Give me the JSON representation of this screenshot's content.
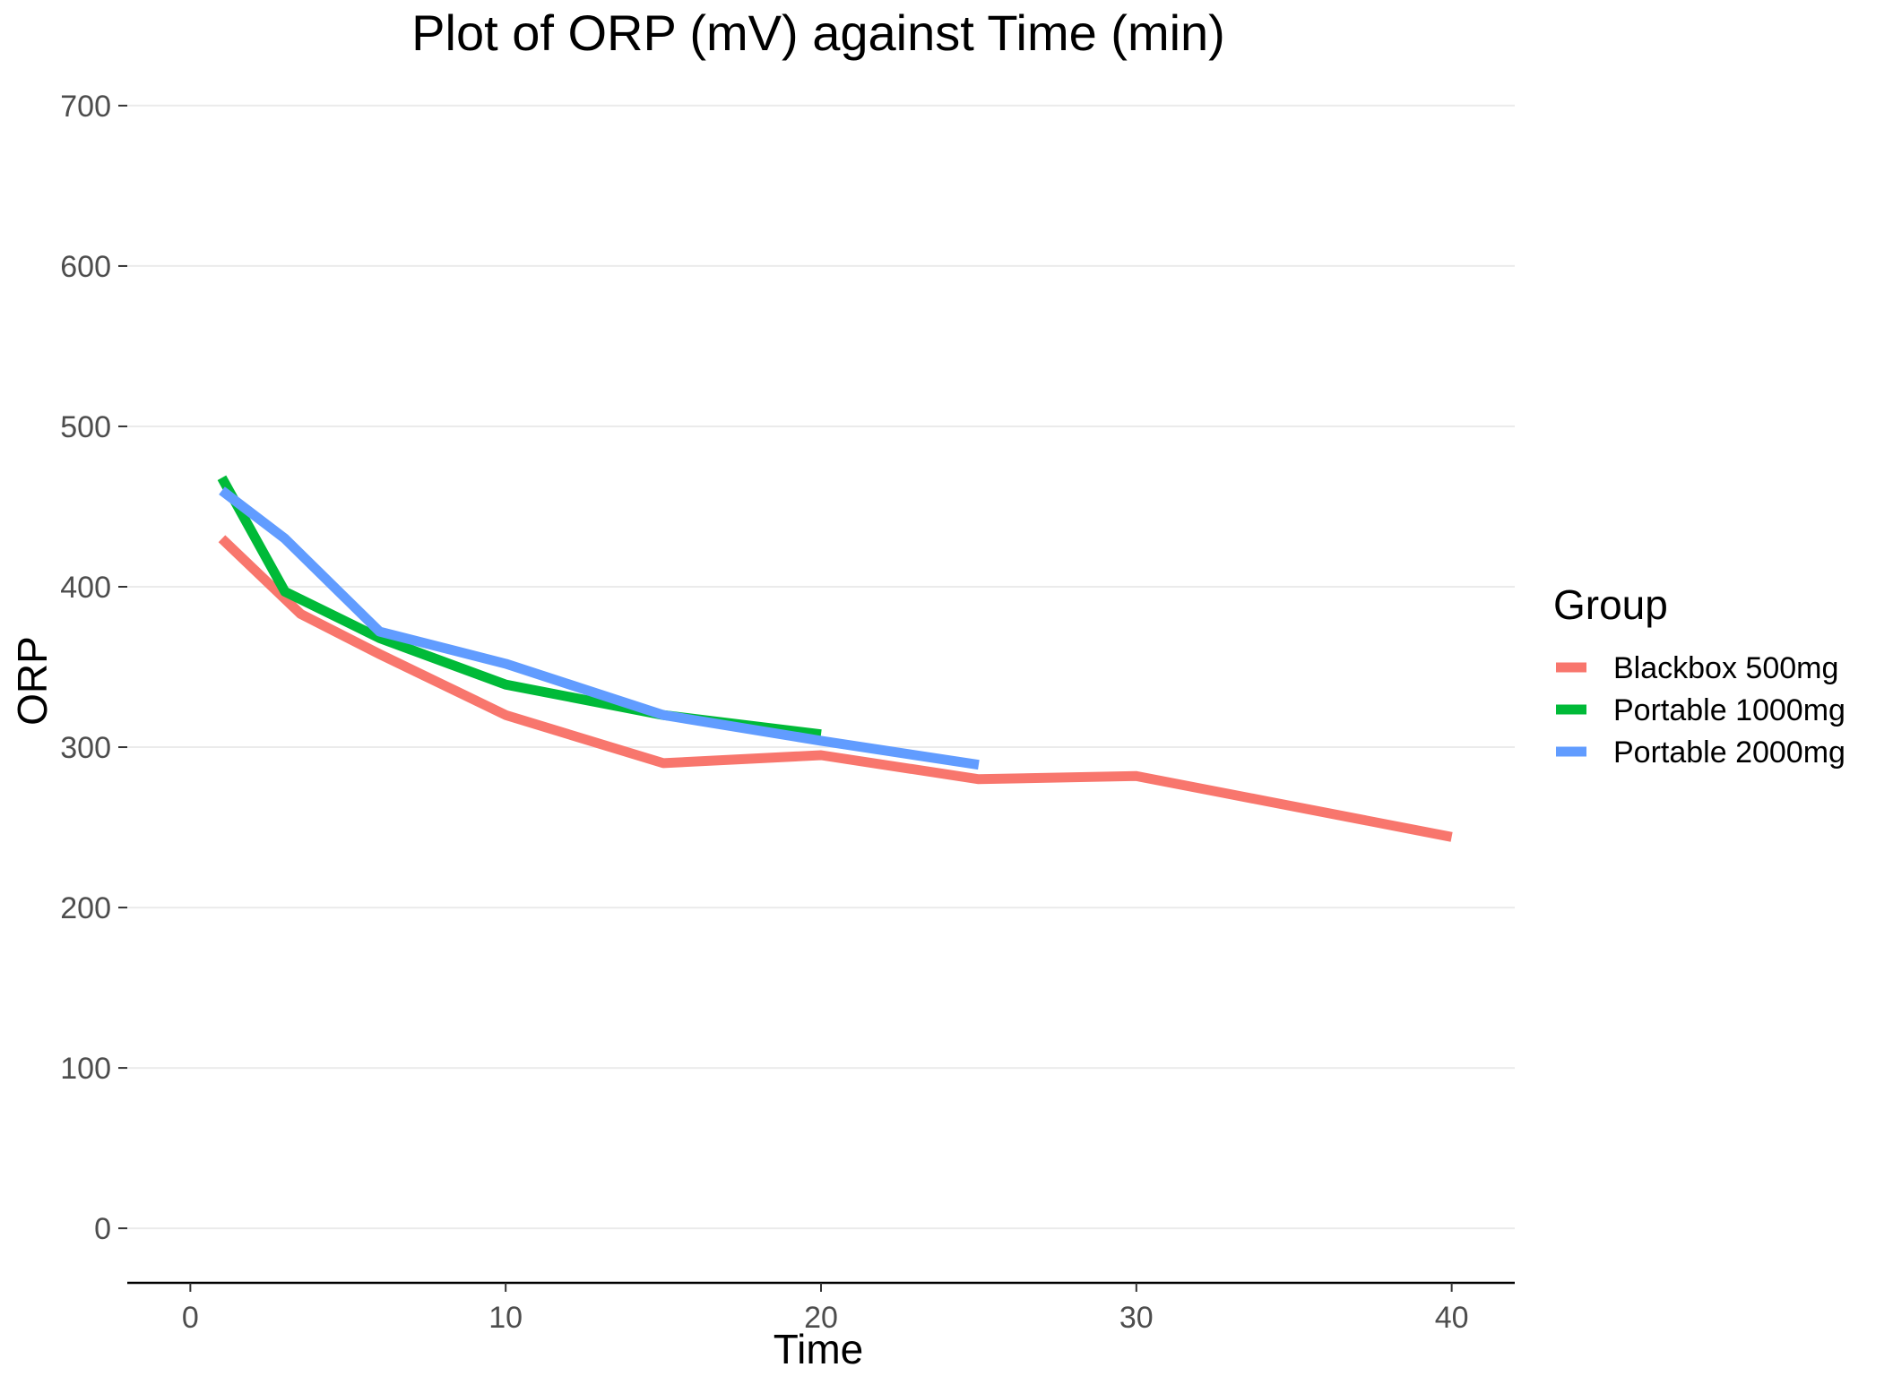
{
  "chart_data": {
    "type": "line",
    "title": "Plot of ORP (mV) against Time (min)",
    "xlabel": "Time",
    "ylabel": "ORP",
    "xlim": [
      -2,
      42
    ],
    "ylim": [
      -34,
      710
    ],
    "x_ticks": [
      0,
      10,
      20,
      30,
      40
    ],
    "y_ticks": [
      0,
      100,
      200,
      300,
      400,
      500,
      600,
      700
    ],
    "grid": true,
    "legend": {
      "title": "Group",
      "position": "right"
    },
    "series": [
      {
        "name": "Blackbox 500mg",
        "color": "#F8766D",
        "x": [
          1,
          3.5,
          6,
          10,
          15,
          20,
          25,
          30,
          40
        ],
        "y": [
          430,
          383,
          358,
          320,
          290,
          295,
          280,
          282,
          244
        ]
      },
      {
        "name": "Portable 1000mg",
        "color": "#00BA38",
        "x": [
          1,
          3,
          6,
          10,
          15,
          20
        ],
        "y": [
          468,
          397,
          368,
          339,
          320,
          308
        ]
      },
      {
        "name": "Portable 2000mg",
        "color": "#619CFF",
        "x": [
          1,
          3,
          6,
          10,
          15,
          20,
          25
        ],
        "y": [
          460,
          430,
          372,
          352,
          320,
          304,
          289
        ]
      }
    ]
  }
}
